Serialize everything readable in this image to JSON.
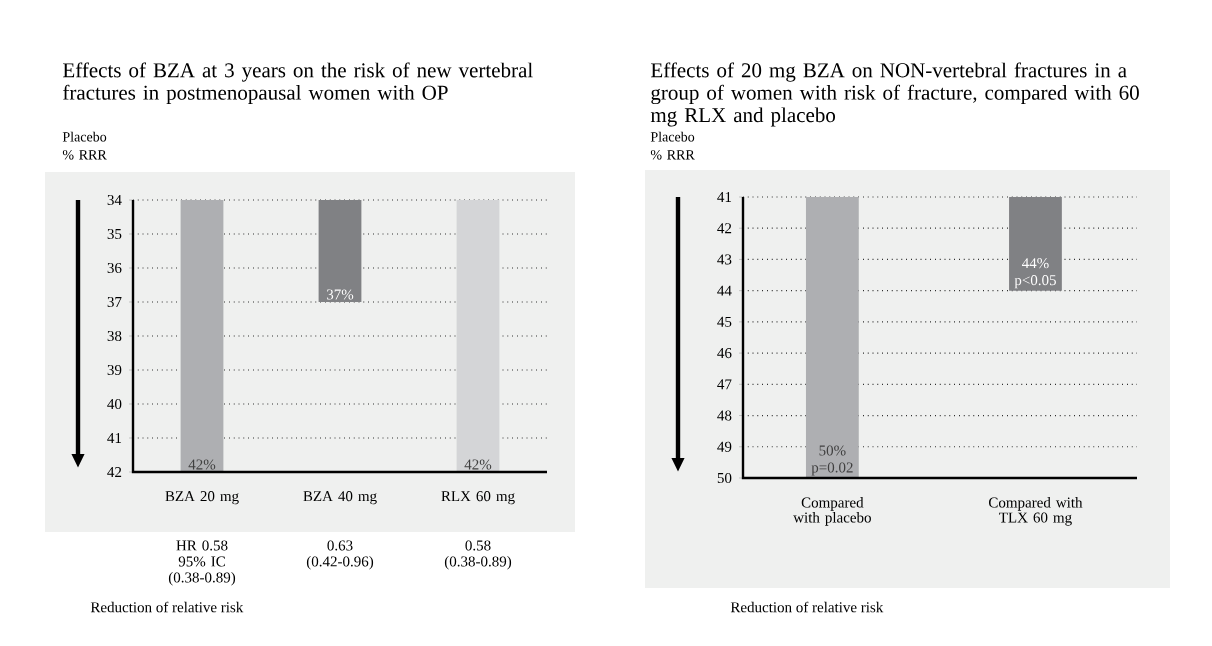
{
  "chart_data": [
    {
      "type": "bar",
      "title": "Effects of BZA at 3 years on the risk of new vertebral fractures in postmenopausal women with OP",
      "ylabel": "Placebo % RRR",
      "categories": [
        "BZA 20 mg",
        "BZA 40 mg",
        "RLX 60 mg"
      ],
      "values": [
        42,
        37,
        42
      ],
      "colors": [
        "#aeafb2",
        "#808184",
        "#d4d5d7"
      ],
      "value_labels": [
        "42%",
        "37%",
        "42%"
      ],
      "ylim": [
        42,
        34
      ],
      "yticks": [
        34,
        35,
        36,
        37,
        38,
        39,
        40,
        41,
        42
      ],
      "grid": "y",
      "annotations": [
        "HR 0.58 95% IC (0.38-0.89)",
        "0.63 (0.42-0.96)",
        "0.58 (0.38-0.89)",
        "Reduction of relative risk"
      ]
    },
    {
      "type": "bar",
      "title": "Effects of 20 mg BZA on NON-vertebral fractures in a group of women with risk of fracture, compared with 60 mg RLX and placebo",
      "ylabel": "Placebo % RRR",
      "categories": [
        "Compared with placebo",
        "Compared with TLX 60 mg"
      ],
      "values": [
        50,
        44
      ],
      "colors": [
        "#aeafb2",
        "#808184"
      ],
      "value_labels": [
        "50% p=0.02",
        "44% p<0.05"
      ],
      "ylim": [
        50,
        41
      ],
      "yticks": [
        41,
        42,
        43,
        44,
        45,
        46,
        47,
        48,
        49,
        50
      ],
      "grid": "y",
      "annotations": [
        "Reduction of relative risk"
      ]
    }
  ]
}
